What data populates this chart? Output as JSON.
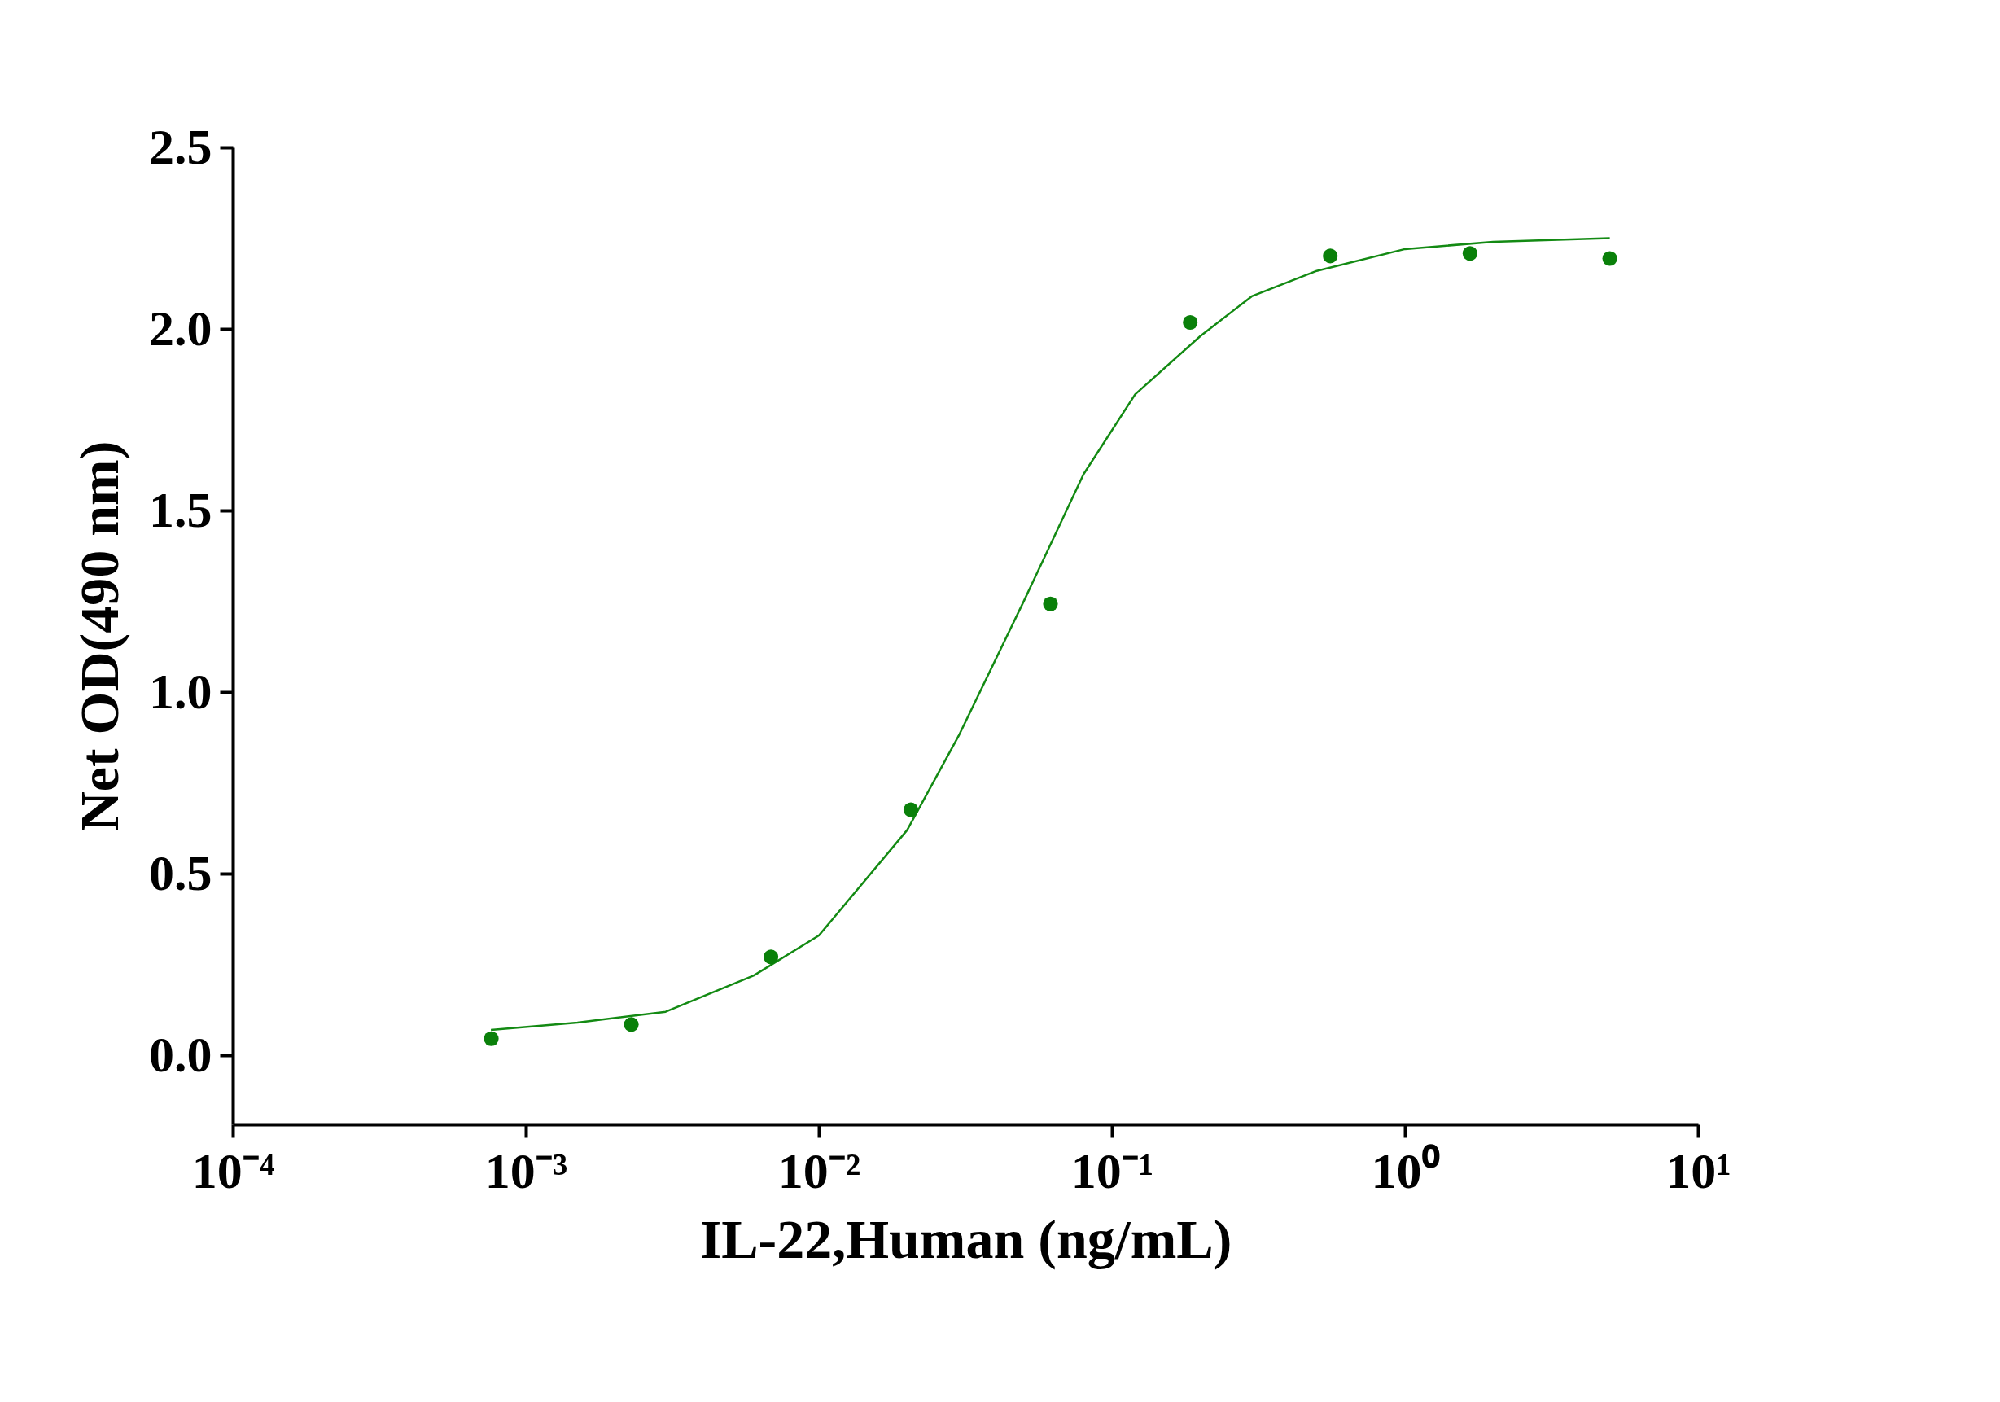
{
  "chart_data": {
    "type": "scatter",
    "xlabel": "IL-22,Human (ng/mL)",
    "ylabel": "Net OD(490 nm)",
    "log": "x",
    "grid": false,
    "line_style": "solid",
    "xlim": [
      0.0001,
      10
    ],
    "ylim": [
      -0.19,
      2.5
    ],
    "xticks": [
      {
        "value": 0.0001,
        "label": "10⁻⁴"
      },
      {
        "value": 0.001,
        "label": "10⁻³"
      },
      {
        "value": 0.01,
        "label": "10⁻²"
      },
      {
        "value": 0.1,
        "label": "10⁻¹"
      },
      {
        "value": 1,
        "label": "10⁰"
      },
      {
        "value": 10,
        "label": "10¹"
      }
    ],
    "yticks": [
      {
        "value": 0,
        "label": "0.0"
      },
      0.5,
      {
        "value": 1,
        "label": "1.0"
      },
      1.5,
      {
        "value": 2,
        "label": "2.0"
      },
      2.5
    ],
    "series": [
      {
        "type": "line",
        "marker": "none",
        "color": "#138a13",
        "x": [
          0.00076,
          0.0015,
          0.003,
          0.006,
          0.01,
          0.02,
          0.03,
          0.05,
          0.08,
          0.12,
          0.2,
          0.3,
          0.5,
          1,
          2,
          5
        ],
        "values": [
          0.07,
          0.09,
          0.12,
          0.22,
          0.33,
          0.62,
          0.88,
          1.25,
          1.6,
          1.82,
          1.98,
          2.09,
          2.16,
          2.22,
          2.24,
          2.25
        ]
      },
      {
        "marker": "circle",
        "color": "#0a800a",
        "x": [
          0.000762,
          0.00229,
          0.00686,
          0.0206,
          0.0617,
          0.185,
          0.556,
          1.667,
          5
        ],
        "values": [
          0.046,
          0.085,
          0.271,
          0.676,
          1.243,
          2.018,
          2.201,
          2.208,
          2.194
        ]
      }
    ]
  }
}
